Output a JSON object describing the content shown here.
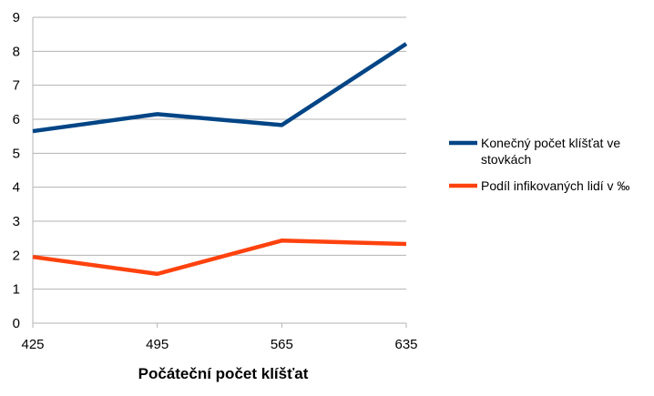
{
  "chart_data": {
    "type": "line",
    "x": [
      "425",
      "495",
      "565",
      "635"
    ],
    "xlabel": "Počáteční počet klíšťat",
    "ylabel": "",
    "ylim": [
      0,
      9
    ],
    "yticks": [
      "0",
      "1",
      "2",
      "3",
      "4",
      "5",
      "6",
      "7",
      "8",
      "9"
    ],
    "grid": "horizontal",
    "legend_position": "right",
    "series": [
      {
        "name": "Konečný počet klíšťat ve stovkách",
        "name_lines": [
          "Konečný počet klíšťat ve",
          "stovkách"
        ],
        "values": [
          5.65,
          6.15,
          5.83,
          8.22
        ],
        "color": "#004586"
      },
      {
        "name": "Podíl infikovaných lidí v ‰",
        "name_lines": [
          "Podíl infikovaných lidí v ‰"
        ],
        "values": [
          1.95,
          1.45,
          2.43,
          2.33
        ],
        "color": "#ff420e"
      }
    ]
  }
}
